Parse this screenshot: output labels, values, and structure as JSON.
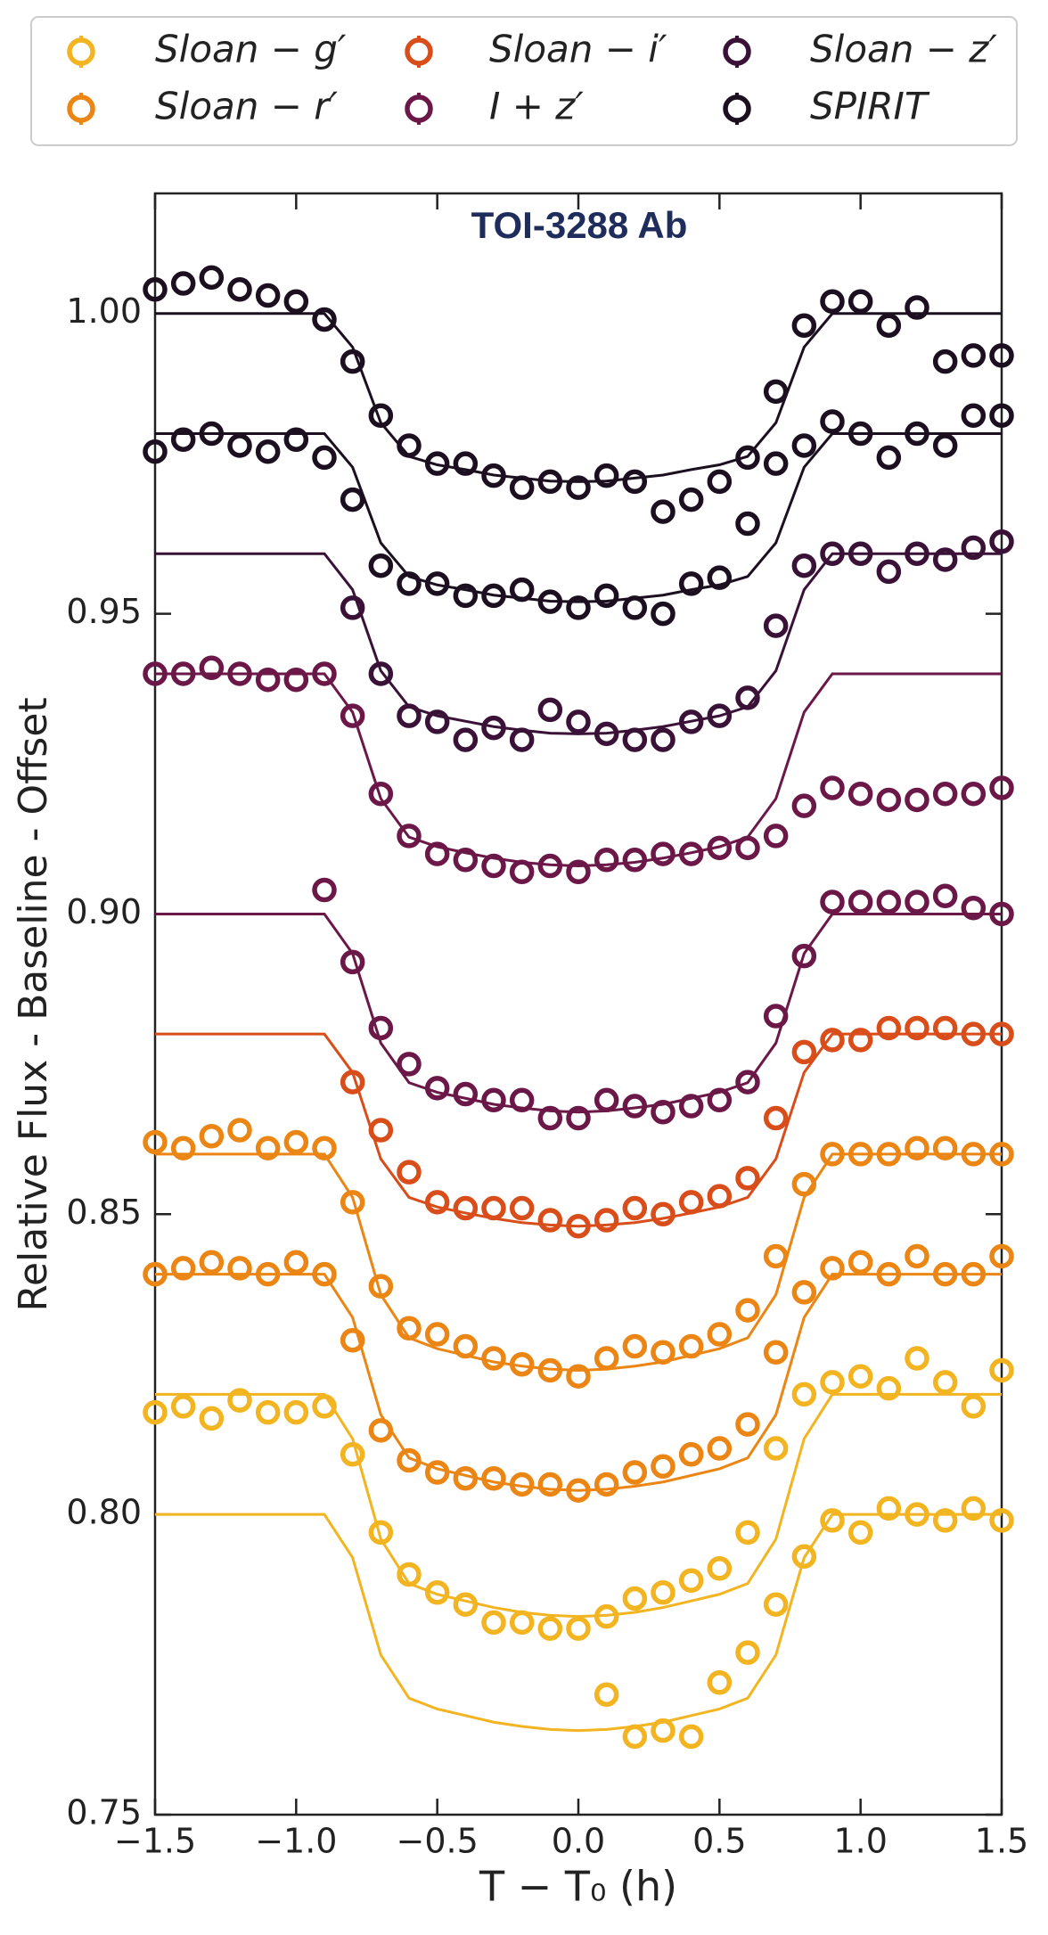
{
  "chart_data": {
    "type": "line",
    "title": "TOI-3288 Ab",
    "xlabel": "T − T₀ (h)",
    "ylabel": "Relative Flux - Baseline - Offset",
    "xlim": [
      -1.5,
      1.5
    ],
    "ylim": [
      0.75,
      1.02
    ],
    "xticks": [
      {
        "value": -1.5,
        "label": "−1.5"
      },
      {
        "value": -1,
        "label": "−1.0"
      },
      {
        "value": -0.5,
        "label": "−0.5"
      },
      {
        "value": 0,
        "label": "0.0"
      },
      0.5,
      {
        "value": 1,
        "label": "1.0"
      },
      1.5
    ],
    "yticks": [
      0.75,
      {
        "value": 0.8,
        "label": "0.80"
      },
      0.85,
      {
        "value": 0.9,
        "label": "0.90"
      },
      0.95,
      {
        "value": 1,
        "label": "1.00"
      }
    ],
    "x": [
      -1.5,
      -1.4,
      -1.3,
      -1.2,
      -1.1,
      -1.0,
      -0.9,
      -0.8,
      -0.7,
      -0.6,
      -0.5,
      -0.4,
      -0.3,
      -0.2,
      -0.1,
      0,
      0.1,
      0.2,
      0.3,
      0.4,
      0.5,
      0.6,
      0.7,
      0.8,
      0.9,
      1.0,
      1.1,
      1.2,
      1.3,
      1.4,
      1.5
    ],
    "series": [
      {
        "name": "Sloan − g′",
        "color": "#f2b420",
        "values": [
          0.817,
          0.818,
          0.816,
          0.819,
          0.817,
          0.817,
          0.818,
          0.81,
          0.797,
          0.79,
          0.787,
          0.785,
          0.782,
          0.782,
          0.781,
          0.781,
          0.783,
          0.786,
          0.787,
          0.789,
          0.791,
          0.797,
          0.811,
          0.82,
          0.822,
          0.823,
          0.821,
          0.826,
          0.822,
          0.818,
          0.824
        ],
        "model": [
          0.82,
          0.82,
          0.82,
          0.82,
          0.82,
          0.82,
          0.82,
          0.8126,
          0.7959,
          0.7885,
          0.7867,
          0.7856,
          0.7845,
          0.7837,
          0.7832,
          0.783,
          0.7832,
          0.7837,
          0.7845,
          0.7856,
          0.7867,
          0.7885,
          0.7959,
          0.8126,
          0.82,
          0.82,
          0.82,
          0.82,
          0.82,
          0.82,
          0.82
        ]
      },
      {
        "name": "Sloan − g′",
        "color": "#f2b420",
        "values": [
          null,
          null,
          null,
          null,
          null,
          null,
          null,
          null,
          null,
          null,
          null,
          null,
          null,
          null,
          null,
          null,
          0.77,
          0.763,
          0.764,
          0.763,
          0.772,
          0.777,
          0.785,
          0.793,
          0.799,
          0.797,
          0.801,
          0.8,
          0.799,
          0.801,
          0.799
        ],
        "model": [
          0.8,
          0.8,
          0.8,
          0.8,
          0.8,
          0.8,
          0.8,
          0.7928,
          0.7766,
          0.7694,
          0.7676,
          0.7665,
          0.7654,
          0.7647,
          0.7642,
          0.764,
          0.7642,
          0.7647,
          0.7654,
          0.7665,
          0.7676,
          0.7694,
          0.7766,
          0.7928,
          0.8,
          0.8,
          0.8,
          0.8,
          0.8,
          0.8,
          0.8
        ]
      },
      {
        "name": "Sloan − r′",
        "color": "#eb8513",
        "values": [
          0.862,
          0.861,
          0.863,
          0.864,
          0.861,
          0.862,
          0.861,
          0.852,
          0.838,
          0.831,
          0.83,
          0.828,
          0.826,
          0.825,
          0.824,
          0.823,
          0.826,
          0.828,
          0.827,
          0.828,
          0.83,
          0.834,
          0.843,
          0.855,
          0.86,
          0.86,
          0.86,
          0.861,
          0.861,
          0.86,
          0.86
        ],
        "model": [
          0.86,
          0.86,
          0.86,
          0.86,
          0.86,
          0.86,
          0.86,
          0.8528,
          0.8366,
          0.8294,
          0.8276,
          0.8265,
          0.8254,
          0.8247,
          0.8242,
          0.824,
          0.8242,
          0.8247,
          0.8254,
          0.8265,
          0.8276,
          0.8294,
          0.8366,
          0.8528,
          0.86,
          0.86,
          0.86,
          0.86,
          0.86,
          0.86,
          0.86
        ]
      },
      {
        "name": "Sloan − r′",
        "color": "#eb8513",
        "values": [
          0.84,
          0.841,
          0.842,
          0.841,
          0.84,
          0.842,
          0.84,
          0.829,
          0.814,
          0.809,
          0.807,
          0.806,
          0.806,
          0.805,
          0.805,
          0.804,
          0.805,
          0.807,
          0.808,
          0.81,
          0.811,
          0.815,
          0.827,
          0.837,
          0.841,
          0.842,
          0.84,
          0.843,
          0.84,
          0.84,
          0.843
        ],
        "model": [
          0.84,
          0.84,
          0.84,
          0.84,
          0.84,
          0.84,
          0.84,
          0.8328,
          0.8166,
          0.8094,
          0.8076,
          0.8065,
          0.8054,
          0.8047,
          0.8042,
          0.804,
          0.8042,
          0.8047,
          0.8054,
          0.8065,
          0.8076,
          0.8094,
          0.8166,
          0.8328,
          0.84,
          0.84,
          0.84,
          0.84,
          0.84,
          0.84,
          0.84
        ]
      },
      {
        "name": "Sloan − i′",
        "color": "#d84d1a",
        "values": [
          null,
          null,
          null,
          null,
          null,
          null,
          null,
          0.872,
          0.864,
          0.857,
          0.852,
          0.851,
          0.851,
          0.851,
          0.849,
          0.848,
          0.849,
          0.851,
          0.85,
          0.852,
          0.853,
          0.856,
          0.866,
          0.877,
          0.879,
          0.879,
          0.881,
          0.881,
          0.881,
          0.88,
          0.88
        ],
        "model": [
          0.88,
          0.88,
          0.88,
          0.88,
          0.88,
          0.88,
          0.88,
          0.8736,
          0.8592,
          0.8528,
          0.8512,
          0.8502,
          0.8493,
          0.8486,
          0.8482,
          0.848,
          0.8482,
          0.8486,
          0.8493,
          0.8502,
          0.8512,
          0.8528,
          0.8592,
          0.8736,
          0.88,
          0.88,
          0.88,
          0.88,
          0.88,
          0.88,
          0.88
        ]
      },
      {
        "name": "I + z′",
        "color": "#6b1848",
        "values": [
          0.94,
          0.94,
          0.941,
          0.94,
          0.939,
          0.939,
          0.94,
          0.933,
          0.92,
          0.913,
          0.91,
          0.909,
          0.908,
          0.907,
          0.908,
          0.907,
          0.909,
          0.909,
          0.91,
          0.91,
          0.911,
          0.911,
          0.913,
          0.918,
          0.921,
          0.92,
          0.919,
          0.919,
          0.92,
          0.92,
          0.921
        ],
        "model": [
          0.94,
          0.94,
          0.94,
          0.94,
          0.94,
          0.94,
          0.94,
          0.9336,
          0.9192,
          0.9128,
          0.9112,
          0.9102,
          0.9093,
          0.9086,
          0.9082,
          0.908,
          0.9082,
          0.9086,
          0.9093,
          0.9102,
          0.9112,
          0.9128,
          0.9192,
          0.9336,
          0.94,
          0.94,
          0.94,
          0.94,
          0.94,
          0.94,
          0.94
        ]
      },
      {
        "name": "I + z′",
        "color": "#6b1848",
        "values": [
          null,
          null,
          null,
          null,
          null,
          null,
          0.904,
          0.892,
          0.881,
          0.875,
          0.871,
          0.87,
          0.869,
          0.869,
          0.866,
          0.866,
          0.869,
          0.868,
          0.867,
          0.868,
          0.869,
          0.872,
          0.883,
          0.893,
          0.902,
          0.902,
          0.902,
          0.902,
          0.903,
          0.901,
          0.9
        ],
        "model": [
          0.9,
          0.9,
          0.9,
          0.9,
          0.9,
          0.9,
          0.9,
          0.8934,
          0.8785,
          0.8719,
          0.8703,
          0.8693,
          0.8683,
          0.8677,
          0.8672,
          0.867,
          0.8672,
          0.8677,
          0.8683,
          0.8693,
          0.8703,
          0.8719,
          0.8785,
          0.8934,
          0.9,
          0.9,
          0.9,
          0.9,
          0.9,
          0.9,
          0.9
        ]
      },
      {
        "name": "Sloan − z′",
        "color": "#3a1238",
        "values": [
          null,
          null,
          null,
          null,
          null,
          null,
          null,
          0.951,
          0.94,
          0.933,
          0.932,
          0.929,
          0.931,
          0.929,
          0.934,
          0.932,
          0.93,
          0.929,
          0.929,
          0.932,
          0.933,
          0.936,
          0.948,
          0.958,
          0.96,
          0.96,
          0.957,
          0.96,
          0.959,
          0.961,
          0.962
        ],
        "model": [
          0.96,
          0.96,
          0.96,
          0.96,
          0.96,
          0.96,
          0.96,
          0.954,
          0.9405,
          0.9345,
          0.933,
          0.9321,
          0.9312,
          0.9306,
          0.9301,
          0.93,
          0.9301,
          0.9306,
          0.9312,
          0.9321,
          0.933,
          0.9345,
          0.9405,
          0.954,
          0.96,
          0.96,
          0.96,
          0.96,
          0.96,
          0.96,
          0.96
        ]
      },
      {
        "name": "SPIRIT",
        "color": "#1c1020",
        "values": [
          1.004,
          1.005,
          1.006,
          1.004,
          1.003,
          1.002,
          0.999,
          0.992,
          0.983,
          0.978,
          0.975,
          0.975,
          0.973,
          0.971,
          0.972,
          0.971,
          0.973,
          0.972,
          0.967,
          0.969,
          0.972,
          0.976,
          0.987,
          0.998,
          1.002,
          1.002,
          0.998,
          1.001,
          0.992,
          0.993,
          0.993
        ],
        "model": [
          1,
          1,
          1,
          1,
          1,
          1,
          1,
          0.9944,
          0.9818,
          0.9762,
          0.9748,
          0.974,
          0.9731,
          0.9726,
          0.9721,
          0.972,
          0.9721,
          0.9726,
          0.9731,
          0.974,
          0.9748,
          0.9762,
          0.9818,
          0.9944,
          1,
          1,
          1,
          1,
          1,
          1,
          1
        ]
      },
      {
        "name": "SPIRIT",
        "color": "#1c1020",
        "values": [
          0.977,
          0.979,
          0.98,
          0.978,
          0.977,
          0.979,
          0.976,
          0.969,
          0.958,
          0.955,
          0.955,
          0.953,
          0.953,
          0.954,
          0.952,
          0.951,
          0.953,
          0.951,
          0.95,
          0.955,
          0.956,
          0.965,
          0.975,
          0.978,
          0.982,
          0.98,
          0.976,
          0.98,
          0.978,
          0.983,
          0.983
        ],
        "model": [
          0.98,
          0.98,
          0.98,
          0.98,
          0.98,
          0.98,
          0.98,
          0.9744,
          0.9618,
          0.9562,
          0.9548,
          0.954,
          0.9531,
          0.9526,
          0.9521,
          0.952,
          0.9521,
          0.9526,
          0.9531,
          0.954,
          0.9548,
          0.9562,
          0.9618,
          0.9744,
          0.98,
          0.98,
          0.98,
          0.98,
          0.98,
          0.98,
          0.98
        ]
      }
    ]
  }
}
